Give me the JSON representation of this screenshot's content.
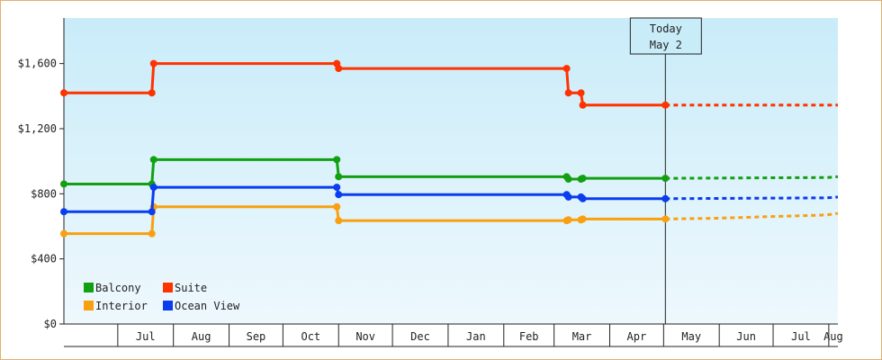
{
  "chart_data": {
    "type": "line",
    "title": "",
    "xlabel": "",
    "ylabel": "",
    "ylim": [
      0,
      1880
    ],
    "y_ticks": [
      "$0",
      "$400",
      "$800",
      "$1,200",
      "$1,600"
    ],
    "y_tick_values": [
      0,
      400,
      800,
      1200,
      1600
    ],
    "x_tick_labels": [
      "Jul",
      "Aug",
      "Sep",
      "Oct",
      "Nov",
      "Dec",
      "Jan",
      "Feb",
      "Mar",
      "Apr",
      "May",
      "Jun",
      "Jul",
      "Aug"
    ],
    "annotation": {
      "line1": "Today",
      "line2": "May 2",
      "date": "2025-05-02"
    },
    "legend_position": "bottom-left",
    "background": {
      "top": "#c9ecf9",
      "bottom": "#eef8fd"
    },
    "series": [
      {
        "name": "Balcony",
        "color": "#12a012",
        "x": [
          "2024-06-01",
          "2024-07-20",
          "2024-07-21",
          "2024-10-31",
          "2024-11-01",
          "2025-03-08",
          "2025-03-09",
          "2025-03-16",
          "2025-03-17",
          "2025-05-02"
        ],
        "y": [
          860,
          860,
          1010,
          1010,
          905,
          905,
          890,
          890,
          895,
          895
        ],
        "proj_x": [
          "2025-05-02",
          "2025-07-31",
          "2025-09-05"
        ],
        "proj_y": [
          895,
          900,
          905
        ]
      },
      {
        "name": "Suite",
        "color": "#ff3300",
        "x": [
          "2024-06-01",
          "2024-07-20",
          "2024-07-21",
          "2024-10-31",
          "2024-11-01",
          "2025-03-08",
          "2025-03-09",
          "2025-03-16",
          "2025-03-17",
          "2025-05-02"
        ],
        "y": [
          1420,
          1420,
          1600,
          1600,
          1570,
          1570,
          1420,
          1420,
          1345,
          1345
        ],
        "proj_x": [
          "2025-05-02",
          "2025-09-05"
        ],
        "proj_y": [
          1345,
          1345
        ]
      },
      {
        "name": "Interior",
        "color": "#f8a010",
        "x": [
          "2024-06-01",
          "2024-07-20",
          "2024-07-21",
          "2024-10-31",
          "2024-11-01",
          "2025-03-08",
          "2025-03-09",
          "2025-03-16",
          "2025-03-17",
          "2025-05-02"
        ],
        "y": [
          555,
          555,
          720,
          720,
          635,
          635,
          640,
          640,
          645,
          645
        ],
        "proj_x": [
          "2025-05-02",
          "2025-05-31",
          "2025-06-30",
          "2025-07-31",
          "2025-09-05"
        ],
        "proj_y": [
          645,
          650,
          660,
          670,
          680
        ]
      },
      {
        "name": "Ocean View",
        "color": "#0a3cf0",
        "x": [
          "2024-06-01",
          "2024-07-20",
          "2024-07-21",
          "2024-10-31",
          "2024-11-01",
          "2025-03-08",
          "2025-03-09",
          "2025-03-16",
          "2025-03-17",
          "2025-05-02"
        ],
        "y": [
          690,
          690,
          840,
          840,
          795,
          795,
          780,
          780,
          770,
          770
        ],
        "proj_x": [
          "2025-05-02",
          "2025-07-31",
          "2025-09-05"
        ],
        "proj_y": [
          770,
          775,
          780
        ]
      }
    ]
  }
}
